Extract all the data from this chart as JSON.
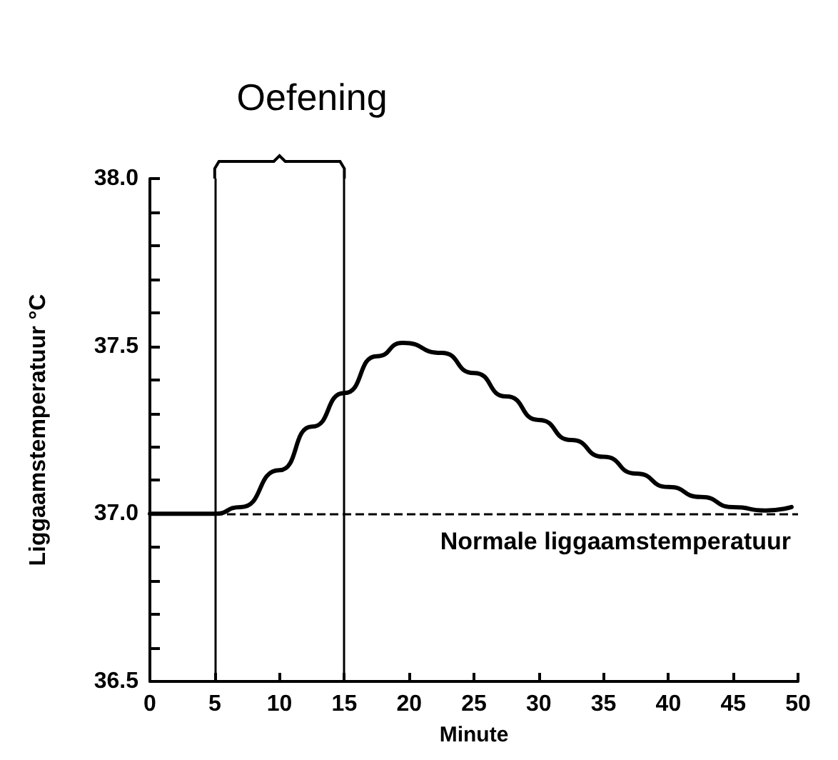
{
  "chart_data": {
    "type": "line",
    "xlabel": "Minute",
    "ylabel": "Liggaamstemperatuur °C",
    "annotations": [
      "Oefening"
    ],
    "x": [
      0,
      5,
      7,
      10,
      12.5,
      15,
      17.5,
      19.5,
      22.5,
      25,
      27.5,
      30,
      32.5,
      35,
      37.5,
      40,
      42.5,
      45,
      47.5,
      49.5
    ],
    "series": [
      {
        "color": "#000000",
        "values": [
          37.0,
          37.0,
          37.02,
          37.13,
          37.26,
          37.36,
          37.47,
          37.51,
          37.48,
          37.42,
          37.35,
          37.28,
          37.22,
          37.17,
          37.12,
          37.08,
          37.05,
          37.02,
          37.01,
          37.02
        ]
      }
    ],
    "xlim": [
      0,
      50
    ],
    "xticks": [
      0,
      5,
      10,
      15,
      20,
      25,
      30,
      35,
      40,
      45,
      50
    ],
    "ylim": [
      36.5,
      38.0
    ],
    "yticks": [
      {
        "value": 36.5,
        "label": "36.5"
      },
      {
        "value": 36.6,
        "label": null
      },
      {
        "value": 36.7,
        "label": null
      },
      {
        "value": 36.8,
        "label": null
      },
      {
        "value": 36.9,
        "label": null
      },
      {
        "value": 37.0,
        "label": "37.0"
      },
      {
        "value": 37.1,
        "label": null
      },
      {
        "value": 37.2,
        "label": null
      },
      {
        "value": 37.3,
        "label": null
      },
      {
        "value": 37.4,
        "label": null
      },
      {
        "value": 37.5,
        "label": "37.5"
      },
      {
        "value": 37.6,
        "label": null
      },
      {
        "value": 37.7,
        "label": null
      },
      {
        "value": 37.8,
        "label": null
      },
      {
        "value": 37.9,
        "label": null
      },
      {
        "value": 38.0,
        "label": "38.0"
      }
    ],
    "ref_lines": [
      {
        "axis": "y",
        "value": 37.0,
        "label": "Normale liggaamstemperatuur",
        "line_style": "dashed",
        "color": "#000000"
      },
      {
        "axis": "x",
        "value": 5,
        "label": null,
        "line_style": "solid",
        "color": "#000000"
      },
      {
        "axis": "x",
        "value": 15,
        "label": null,
        "line_style": "solid",
        "color": "#000000"
      }
    ],
    "grid": false,
    "marker": "none",
    "line_style": "solid"
  }
}
